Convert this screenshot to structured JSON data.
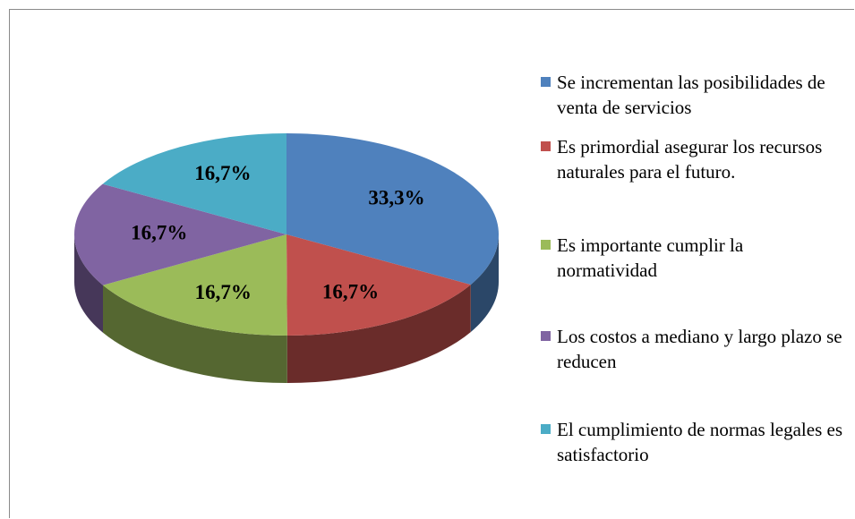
{
  "chart_data": {
    "type": "pie",
    "categories": [
      "Se incrementan las posibilidades de venta de servicios",
      "Es primordial asegurar los recursos naturales para el futuro.",
      "Es importante cumplir la normatividad",
      "Los costos a mediano y largo plazo  se reducen",
      "El cumplimiento de normas legales es satisfactorio"
    ],
    "values": [
      33.3,
      16.7,
      16.7,
      16.7,
      16.7
    ],
    "value_labels": [
      "33,3%",
      "16,7%",
      "16,7%",
      "16,7%",
      "16,7%"
    ],
    "colors": [
      "#4f81bd",
      "#c0504d",
      "#9bbb59",
      "#8064a2",
      "#4bacc6"
    ],
    "legend": "right"
  }
}
